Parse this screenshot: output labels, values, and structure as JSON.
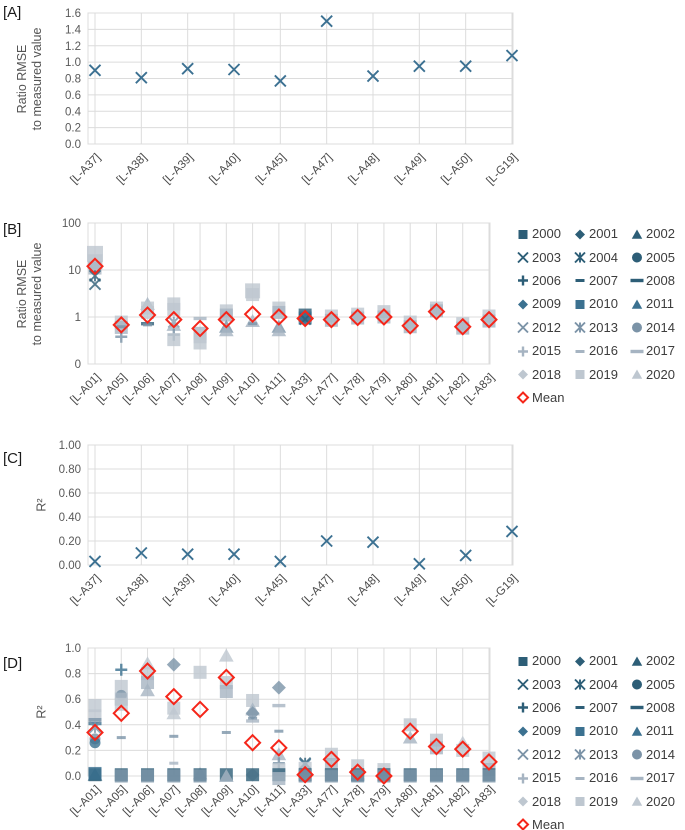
{
  "figure": {
    "panels_meta": {
      "A": {
        "label": "[A]",
        "ylabel1": "Ratio RMSE",
        "ylabel2": "to measured value"
      },
      "B": {
        "label": "[B]",
        "ylabel1": "Ratio RMSE",
        "ylabel2": "to measured value"
      },
      "C": {
        "label": "[C]",
        "ylabel1": "R²"
      },
      "D": {
        "label": "[D]",
        "ylabel1": "R²"
      }
    }
  },
  "colors": {
    "dark": "#2d5e77",
    "dark2": "#3b7190",
    "med": "#7b93a7",
    "medlight": "#a6b4c2",
    "light": "#bec7d0",
    "point": "#3c7192",
    "mean": "#f5261a",
    "grid": "#dcdcdc",
    "tick": "#595959",
    "cat_text": "#4a4a4a",
    "legend_text": "#3d3d3d"
  },
  "legend": {
    "items": [
      {
        "year": "2000",
        "marker": "sq",
        "shade": "dark"
      },
      {
        "year": "2001",
        "marker": "di",
        "shade": "dark"
      },
      {
        "year": "2002",
        "marker": "tr",
        "shade": "dark"
      },
      {
        "year": "2003",
        "marker": "x",
        "shade": "dark"
      },
      {
        "year": "2004",
        "marker": "xs",
        "shade": "dark"
      },
      {
        "year": "2005",
        "marker": "ci",
        "shade": "dark"
      },
      {
        "year": "2006",
        "marker": "pl",
        "shade": "dark"
      },
      {
        "year": "2007",
        "marker": "dsh",
        "shade": "dark"
      },
      {
        "year": "2008",
        "marker": "dash",
        "shade": "dark"
      },
      {
        "year": "2009",
        "marker": "di",
        "shade": "dark2"
      },
      {
        "year": "2010",
        "marker": "sq",
        "shade": "dark2"
      },
      {
        "year": "2011",
        "marker": "tr",
        "shade": "dark2"
      },
      {
        "year": "2012",
        "marker": "x",
        "shade": "med"
      },
      {
        "year": "2013",
        "marker": "xs",
        "shade": "med"
      },
      {
        "year": "2014",
        "marker": "ci",
        "shade": "med"
      },
      {
        "year": "2015",
        "marker": "pl",
        "shade": "medlight"
      },
      {
        "year": "2016",
        "marker": "dsh",
        "shade": "medlight"
      },
      {
        "year": "2017",
        "marker": "dash",
        "shade": "medlight"
      },
      {
        "year": "2018",
        "marker": "di",
        "shade": "light"
      },
      {
        "year": "2019",
        "marker": "sq",
        "shade": "light"
      },
      {
        "year": "2020",
        "marker": "tr",
        "shade": "light"
      }
    ],
    "mean_label": "Mean"
  },
  "chart_data": [
    {
      "type": "scatter",
      "panel": "A",
      "title": "",
      "xlabel": "",
      "ylabel": "Ratio RMSE to measured value",
      "yaxis": {
        "scale": "linear",
        "min": 0,
        "max": 1.6,
        "ticks": [
          "0.0",
          "0.2",
          "0.4",
          "0.6",
          "0.8",
          "1.0",
          "1.2",
          "1.4",
          "1.6"
        ]
      },
      "categories": [
        "[L-A37]",
        "[L-A38]",
        "[L-A39]",
        "[L-A40]",
        "[L-A45]",
        "[L-A47]",
        "[L-A48]",
        "[L-A49]",
        "[L-A50]",
        "[L-G19]"
      ],
      "series": [
        {
          "name": "ratio-rmse",
          "marker": "x",
          "shade": "point",
          "values": [
            0.9,
            0.81,
            0.92,
            0.91,
            0.77,
            1.5,
            0.83,
            0.95,
            0.95,
            1.08
          ]
        }
      ],
      "grid": true,
      "legend_position": "none"
    },
    {
      "type": "scatter",
      "panel": "B",
      "title": "",
      "xlabel": "",
      "ylabel": "Ratio RMSE to measured value",
      "yaxis": {
        "scale": "log-excel",
        "ticks": [
          "0",
          "1",
          "10",
          "100"
        ]
      },
      "categories": [
        "[L-A01]",
        "[L-A05]",
        "[L-A06]",
        "[L-A07]",
        "[L-A08]",
        "[L-A09]",
        "[L-A10]",
        "[L-A11]",
        "[L-A33]",
        "[L-A77]",
        "[L-A78]",
        "[L-A79]",
        "[L-A80]",
        "[L-A81]",
        "[L-A82]",
        "[L-A83]"
      ],
      "clusters": [
        [
          [
            "sq",
            "light",
            22,
            16
          ],
          [
            "sq",
            "light",
            15,
            15
          ],
          [
            "sq",
            "medlight",
            11,
            13
          ],
          [
            "xs",
            "dark",
            7.5
          ],
          [
            "x",
            "dark",
            5
          ]
        ],
        [
          [
            "sq",
            "light",
            0.78
          ],
          [
            "sq",
            "medlight",
            0.6
          ],
          [
            "dsh",
            "med",
            0.62
          ],
          [
            "pl",
            "med",
            0.38
          ]
        ],
        [
          [
            "tr",
            "medlight",
            1.9
          ],
          [
            "sq",
            "light",
            1.55
          ],
          [
            "sq",
            "light",
            1.25
          ],
          [
            "dash",
            "dark",
            0.72
          ],
          [
            "dsh",
            "med",
            0.68
          ]
        ],
        [
          [
            "sq",
            "light",
            1.9
          ],
          [
            "sq",
            "light",
            1.45
          ],
          [
            "xs",
            "med",
            0.78
          ],
          [
            "tr",
            "medlight",
            0.68
          ],
          [
            "pl",
            "med",
            0.42
          ],
          [
            "sq",
            "light",
            0.33
          ]
        ],
        [
          [
            "dash",
            "medlight",
            0.93
          ],
          [
            "sq",
            "medlight",
            0.45
          ],
          [
            "sq",
            "light",
            0.38
          ],
          [
            "sq",
            "light",
            0.28
          ]
        ],
        [
          [
            "sq",
            "light",
            1.35
          ],
          [
            "sq",
            "medlight",
            1.1
          ],
          [
            "tr",
            "med",
            0.62
          ],
          [
            "tr",
            "medlight",
            0.52
          ]
        ],
        [
          [
            "sq",
            "light",
            3.6,
            15
          ],
          [
            "sq",
            "light",
            3.0
          ],
          [
            "tr",
            "medlight",
            0.82
          ],
          [
            "dsh",
            "med",
            0.72
          ]
        ],
        [
          [
            "sq",
            "light",
            1.55
          ],
          [
            "sq",
            "medlight",
            1.25
          ],
          [
            "tr",
            "med",
            0.62
          ],
          [
            "tr",
            "medlight",
            0.52
          ]
        ],
        [
          [
            "sq",
            "dark",
            1.1
          ],
          [
            "di",
            "dark2",
            1.0
          ],
          [
            "sq",
            "dark2",
            0.95
          ],
          [
            "x",
            "dark",
            0.9
          ]
        ],
        [
          [
            "sq",
            "light",
            1.05
          ],
          [
            "sq",
            "medlight",
            0.85
          ]
        ],
        [
          [
            "sq",
            "light",
            1.15
          ],
          [
            "sq",
            "medlight",
            0.95
          ]
        ],
        [
          [
            "sq",
            "light",
            1.3
          ],
          [
            "sq",
            "medlight",
            1.0
          ]
        ],
        [
          [
            "sq",
            "light",
            0.78
          ],
          [
            "sq",
            "medlight",
            0.62
          ]
        ],
        [
          [
            "sq",
            "light",
            1.55
          ],
          [
            "sq",
            "medlight",
            1.35
          ]
        ],
        [
          [
            "sq",
            "light",
            0.72
          ],
          [
            "sq",
            "medlight",
            0.58
          ]
        ],
        [
          [
            "sq",
            "light",
            1.05
          ],
          [
            "sq",
            "medlight",
            0.82
          ]
        ]
      ],
      "mean": [
        12,
        0.68,
        1.1,
        0.88,
        0.57,
        0.88,
        1.15,
        1.0,
        0.93,
        0.88,
        0.98,
        1.0,
        0.65,
        1.3,
        0.62,
        0.88
      ],
      "grid": true,
      "legend_position": "right"
    },
    {
      "type": "scatter",
      "panel": "C",
      "title": "",
      "xlabel": "",
      "ylabel": "R²",
      "yaxis": {
        "scale": "linear",
        "min": 0,
        "max": 1.0,
        "ticks": [
          "0.00",
          "0.20",
          "0.40",
          "0.60",
          "0.80",
          "1.00"
        ]
      },
      "categories": [
        "[L-A37]",
        "[L-A38]",
        "[L-A39]",
        "[L-A40]",
        "[L-A45]",
        "[L-A47]",
        "[L-A48]",
        "[L-A49]",
        "[L-A50]",
        "[L-G19]"
      ],
      "series": [
        {
          "name": "r-squared",
          "marker": "x",
          "shade": "point",
          "values": [
            0.03,
            0.1,
            0.09,
            0.09,
            0.03,
            0.2,
            0.19,
            0.01,
            0.08,
            0.28
          ]
        }
      ],
      "grid": true,
      "legend_position": "none"
    },
    {
      "type": "scatter",
      "panel": "D",
      "title": "",
      "xlabel": "",
      "ylabel": "R²",
      "yaxis": {
        "scale": "linear",
        "min": 0,
        "max": 1.0,
        "ticks": [
          "0.0",
          "0.2",
          "0.4",
          "0.6",
          "0.8",
          "1.0"
        ]
      },
      "categories": [
        "[L-A01]",
        "[L-A05]",
        "[L-A06]",
        "[L-A07]",
        "[L-A08]",
        "[L-A09]",
        "[L-A10]",
        "[L-A11]",
        "[L-A33]",
        "[L-A77]",
        "[L-A78]",
        "[L-A79]",
        "[L-A80]",
        "[L-A81]",
        "[L-A82]",
        "[L-A83]"
      ],
      "clusters": [
        [
          [
            "sq",
            "light",
            0.55
          ],
          [
            "sq",
            "light",
            0.47
          ],
          [
            "dash",
            "med",
            0.44
          ],
          [
            "dash",
            "dark2",
            0.41
          ],
          [
            "xs",
            "med",
            0.38
          ],
          [
            "ci",
            "med",
            0.29
          ],
          [
            "ci",
            "dark2",
            0.26
          ],
          [
            "tr",
            "dark",
            0.01
          ],
          [
            "sq",
            "dark",
            0.01
          ],
          [
            "sq",
            "dark2",
            0.02
          ]
        ],
        [
          [
            "pl",
            "dark2",
            0.83
          ],
          [
            "sq",
            "light",
            0.7
          ],
          [
            "ci",
            "med",
            0.63
          ],
          [
            "sq",
            "medlight",
            0.6
          ],
          [
            "sq",
            "light",
            0.56
          ],
          [
            "dsh",
            "med",
            0.3
          ],
          [
            "sq",
            "dark",
            0.01
          ],
          [
            "sq",
            "med",
            0.0
          ]
        ],
        [
          [
            "tr",
            "light",
            0.88
          ],
          [
            "sq",
            "light",
            0.8
          ],
          [
            "sq",
            "medlight",
            0.73
          ],
          [
            "tr",
            "medlight",
            0.67
          ],
          [
            "sq",
            "dark",
            0.01
          ],
          [
            "sq",
            "med",
            0.0
          ]
        ],
        [
          [
            "di",
            "med",
            0.87
          ],
          [
            "sq",
            "light",
            0.53
          ],
          [
            "tr",
            "light",
            0.49
          ],
          [
            "dsh",
            "med",
            0.31
          ],
          [
            "dsh",
            "medlight",
            0.1
          ],
          [
            "sq",
            "dark",
            0.01
          ],
          [
            "sq",
            "med",
            0.0
          ]
        ],
        [
          [
            "sq",
            "light",
            0.81
          ],
          [
            "tr",
            "light",
            0.02
          ],
          [
            "sq",
            "dark",
            0.01
          ],
          [
            "sq",
            "med",
            0.0
          ]
        ],
        [
          [
            "tr",
            "light",
            0.94
          ],
          [
            "sq",
            "light",
            0.73
          ],
          [
            "sq",
            "medlight",
            0.66
          ],
          [
            "dsh",
            "med",
            0.34
          ],
          [
            "sq",
            "dark",
            0.01
          ],
          [
            "tr",
            "medlight",
            0.0
          ]
        ],
        [
          [
            "sq",
            "light",
            0.59
          ],
          [
            "tr",
            "medlight",
            0.52
          ],
          [
            "di",
            "med",
            0.49
          ],
          [
            "dsh",
            "med",
            0.45
          ],
          [
            "dash",
            "medlight",
            0.43
          ],
          [
            "di",
            "light",
            0.01
          ],
          [
            "sq",
            "dark",
            0.01
          ]
        ],
        [
          [
            "di",
            "med",
            0.69
          ],
          [
            "dash",
            "medlight",
            0.55
          ],
          [
            "dsh",
            "med",
            0.35
          ],
          [
            "tr",
            "medlight",
            0.17
          ],
          [
            "pl",
            "med",
            0.1
          ],
          [
            "sq",
            "light",
            0.05
          ],
          [
            "sq",
            "dark",
            0.01
          ],
          [
            "sq",
            "medlight",
            -0.02
          ]
        ],
        [
          [
            "xs",
            "dark",
            0.1
          ],
          [
            "x",
            "dark2",
            0.09
          ],
          [
            "sq",
            "light",
            0.06
          ],
          [
            "sq",
            "dark",
            0.01
          ],
          [
            "sq",
            "med",
            0.0
          ]
        ],
        [
          [
            "sq",
            "light",
            0.17
          ],
          [
            "sq",
            "medlight",
            0.09
          ],
          [
            "sq",
            "dark",
            0.01
          ],
          [
            "sq",
            "med",
            0.0
          ]
        ],
        [
          [
            "sq",
            "light",
            0.08
          ],
          [
            "sq",
            "dark",
            0.01
          ],
          [
            "dash",
            "dark2",
            -0.03
          ],
          [
            "sq",
            "med",
            0.0
          ]
        ],
        [
          [
            "sq",
            "light",
            0.05
          ],
          [
            "sq",
            "dark",
            0.01
          ],
          [
            "sq",
            "med",
            0.0
          ]
        ],
        [
          [
            "sq",
            "light",
            0.4
          ],
          [
            "tr",
            "medlight",
            0.3
          ],
          [
            "sq",
            "dark",
            0.01
          ],
          [
            "sq",
            "med",
            0.0
          ]
        ],
        [
          [
            "sq",
            "light",
            0.28
          ],
          [
            "sq",
            "medlight",
            0.22
          ],
          [
            "sq",
            "dark",
            0.01
          ],
          [
            "sq",
            "med",
            0.0
          ]
        ],
        [
          [
            "tr",
            "light",
            0.26
          ],
          [
            "sq",
            "light",
            0.2
          ],
          [
            "sq",
            "dark",
            0.01
          ],
          [
            "sq",
            "med",
            0.0
          ]
        ],
        [
          [
            "sq",
            "light",
            0.14
          ],
          [
            "sq",
            "medlight",
            0.05
          ],
          [
            "sq",
            "dark",
            0.01
          ],
          [
            "sq",
            "med",
            0.0
          ]
        ]
      ],
      "mean": [
        0.34,
        0.49,
        0.82,
        0.62,
        0.52,
        0.77,
        0.26,
        0.22,
        0.01,
        0.13,
        0.03,
        0.0,
        0.35,
        0.23,
        0.21,
        0.11
      ],
      "grid": true,
      "legend_position": "right"
    }
  ]
}
